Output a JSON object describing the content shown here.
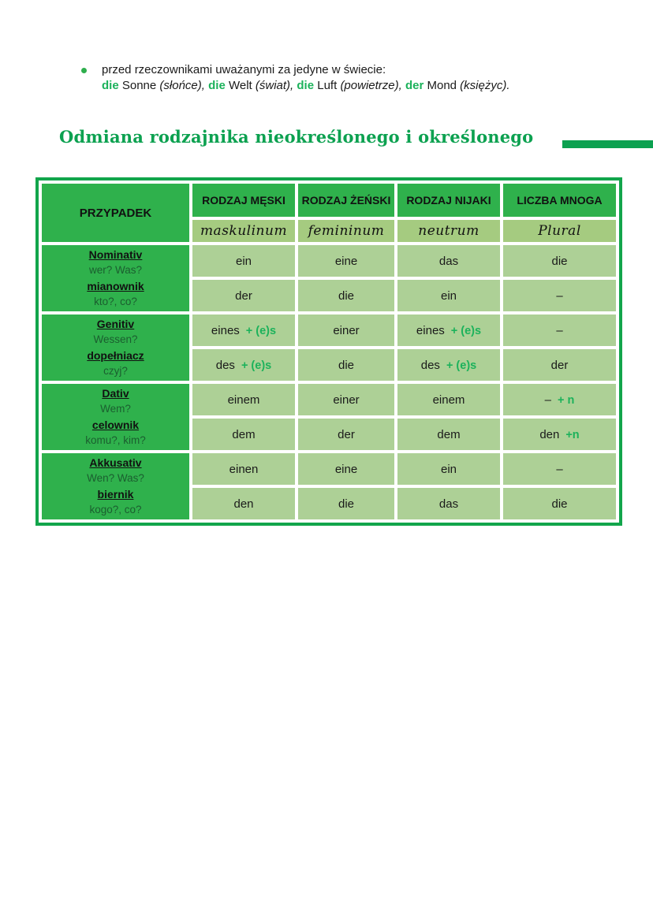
{
  "colors": {
    "accent_green_text": "#1cb25b",
    "heading_green": "#0ca150",
    "header_cell_green": "#2fb14c",
    "table_frame_green": "#12a54b",
    "subheader_olive_green": "#a5cb80",
    "data_cell_light_green": "#add096"
  },
  "bullet": {
    "line1": "przed rzeczownikami uważanymi za jedyne w świecie:",
    "line2_parts": [
      {
        "t": "die",
        "green": true
      },
      {
        "t": " Sonne "
      },
      {
        "t": "(słońce),",
        "italic": true
      },
      {
        "t": " "
      },
      {
        "t": "die",
        "green": true
      },
      {
        "t": " Welt "
      },
      {
        "t": "(świat),",
        "italic": true
      },
      {
        "t": " "
      },
      {
        "t": "die",
        "green": true
      },
      {
        "t": " Luft "
      },
      {
        "t": "(powietrze),",
        "italic": true
      },
      {
        "t": " "
      },
      {
        "t": "der",
        "green": true
      },
      {
        "t": " Mond "
      },
      {
        "t": "(księżyc).",
        "italic": true
      }
    ]
  },
  "heading": {
    "text": "Odmiana rodzajnika nieokreślonego i określonego"
  },
  "table": {
    "corner_header": "PRZYPADEK",
    "columns": [
      {
        "label": "RODZAJ MĘSKI",
        "sublabel": "maskulinum"
      },
      {
        "label": "RODZAJ ŻEŃSKI",
        "sublabel": "femininum"
      },
      {
        "label": "RODZAJ NIJAKI",
        "sublabel": "neutrum"
      },
      {
        "label": "LICZBA MNOGA",
        "sublabel": "Plural"
      }
    ],
    "groups": [
      {
        "case_de": "Nominativ",
        "q_de": "wer? Was?",
        "case_pl": "mianownik",
        "q_pl": "kto?, co?",
        "rows": [
          [
            {
              "w": "ein"
            },
            {
              "w": "eine"
            },
            {
              "w": "das"
            },
            {
              "w": "die"
            }
          ],
          [
            {
              "w": "der"
            },
            {
              "w": "die"
            },
            {
              "w": "ein"
            },
            {
              "w": "–"
            }
          ]
        ]
      },
      {
        "case_de": "Genitiv",
        "q_de": "Wessen?",
        "case_pl": "dopełniacz",
        "q_pl": "czyj?",
        "rows": [
          [
            {
              "w": "eines",
              "s": "+ (e)s"
            },
            {
              "w": "einer"
            },
            {
              "w": "eines",
              "s": "+ (e)s"
            },
            {
              "w": "–"
            }
          ],
          [
            {
              "w": "des",
              "s": "+ (e)s"
            },
            {
              "w": "die"
            },
            {
              "w": "des",
              "s": "+ (e)s"
            },
            {
              "w": "der"
            }
          ]
        ]
      },
      {
        "case_de": "Dativ",
        "q_de": "Wem?",
        "case_pl": "celownik",
        "q_pl": "komu?, kim?",
        "rows": [
          [
            {
              "w": "einem"
            },
            {
              "w": "einer"
            },
            {
              "w": "einem"
            },
            {
              "w": "–",
              "s": "+ n"
            }
          ],
          [
            {
              "w": "dem"
            },
            {
              "w": "der"
            },
            {
              "w": "dem"
            },
            {
              "w": "den",
              "s": "+n"
            }
          ]
        ]
      },
      {
        "case_de": "Akkusativ",
        "q_de": "Wen? Was?",
        "case_pl": "biernik",
        "q_pl": "kogo?, co?",
        "rows": [
          [
            {
              "w": "einen"
            },
            {
              "w": "eine"
            },
            {
              "w": "ein"
            },
            {
              "w": "–"
            }
          ],
          [
            {
              "w": "den"
            },
            {
              "w": "die"
            },
            {
              "w": "das"
            },
            {
              "w": "die"
            }
          ]
        ]
      }
    ]
  }
}
